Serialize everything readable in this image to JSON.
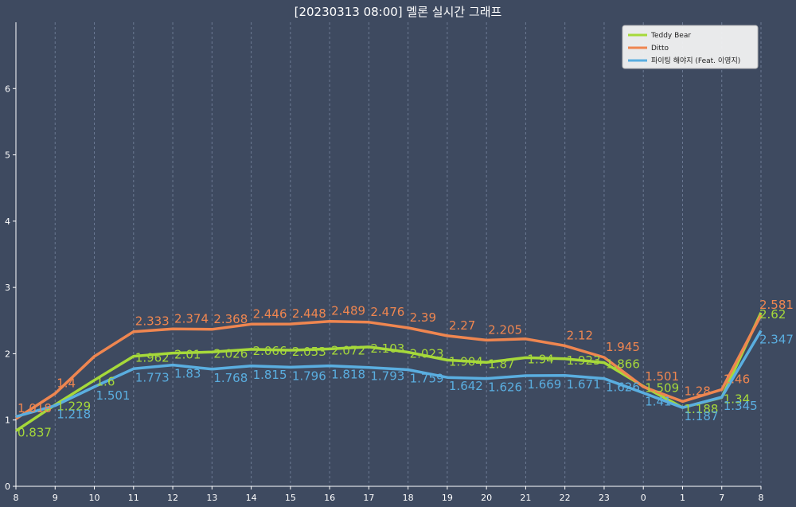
{
  "chart_data": {
    "type": "line",
    "title": "[20230313 08:00] 멜론 실시간 그래프",
    "categories": [
      "8",
      "9",
      "10",
      "11",
      "12",
      "13",
      "14",
      "15",
      "16",
      "17",
      "18",
      "19",
      "20",
      "21",
      "22",
      "23",
      "0",
      "1",
      "7",
      "8"
    ],
    "ylim": [
      0,
      7
    ],
    "yticks": [
      "0",
      "1",
      "2",
      "3",
      "4",
      "5",
      "6"
    ],
    "grid": "vertical dashed",
    "legend_position": "top-right",
    "series": [
      {
        "name": "Teddy Bear",
        "color": "#a6d93a",
        "values": [
          0.837,
          1.229,
          1.6,
          1.962,
          2.01,
          2.026,
          2.066,
          2.053,
          2.072,
          2.103,
          2.023,
          1.904,
          1.87,
          1.94,
          1.923,
          1.866,
          1.509,
          1.188,
          1.34,
          2.62
        ],
        "labels": [
          "0.837",
          "1.229",
          "1.6",
          "1.962",
          "2.01",
          "2.026",
          "2.066",
          "2.053",
          "2.072",
          "2.103",
          "2.023",
          "1.904",
          "1.87",
          "1.94",
          "1.923",
          "1.866",
          "1.509",
          "1.188",
          "1.34",
          "2.62"
        ]
      },
      {
        "name": "Ditto",
        "color": "#ef8650",
        "values": [
          1.018,
          1.4,
          1.96,
          2.333,
          2.374,
          2.368,
          2.446,
          2.448,
          2.489,
          2.476,
          2.39,
          2.27,
          2.205,
          2.224,
          2.12,
          1.945,
          1.501,
          1.28,
          1.46,
          2.581
        ],
        "labels": [
          "1.018",
          "1.4",
          "",
          "2.333",
          "2.374",
          "2.368",
          "2.446",
          "2.448",
          "2.489",
          "2.476",
          "2.39",
          "2.27",
          "2.205",
          "",
          "2.12",
          "1.945",
          "1.501",
          "1.28",
          "1.46",
          "2.581"
        ]
      },
      {
        "name": "파이팅 해야지 (Feat. 이영지)",
        "color": "#5aaee0",
        "values": [
          1.05,
          1.218,
          1.501,
          1.773,
          1.83,
          1.768,
          1.815,
          1.796,
          1.818,
          1.793,
          1.759,
          1.642,
          1.626,
          1.669,
          1.671,
          1.626,
          1.41,
          1.187,
          1.345,
          2.347
        ],
        "labels": [
          "",
          "1.218",
          "1.501",
          "1.773",
          "1.83",
          "1.768",
          "1.815",
          "1.796",
          "1.818",
          "1.793",
          "1.759",
          "1.642",
          "1.626",
          "1.669",
          "1.671",
          "1.626",
          "1.41",
          "1.187",
          "1.345",
          "2.347"
        ]
      }
    ]
  }
}
